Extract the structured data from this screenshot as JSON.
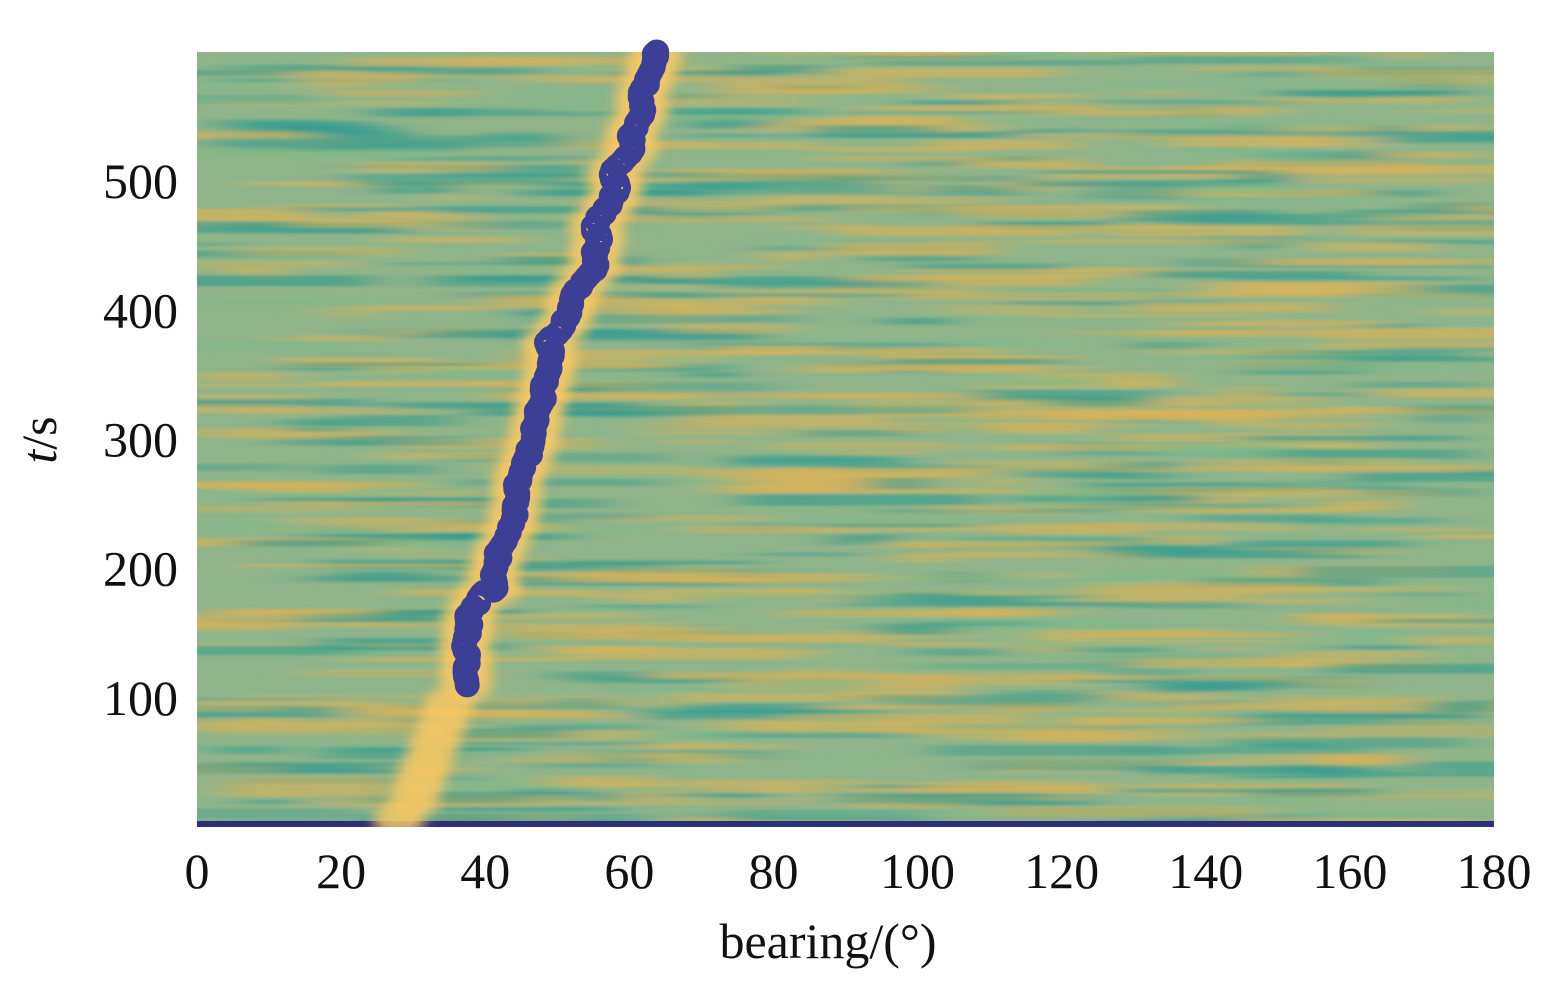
{
  "chart_data": {
    "type": "heatmap",
    "title": "",
    "xlabel": "bearing/(°)",
    "ylabel_italic": "t",
    "ylabel_rest": "/s",
    "xlim": [
      0,
      180
    ],
    "ylim": [
      0,
      600
    ],
    "x_ticks": [
      0,
      20,
      40,
      60,
      80,
      100,
      120,
      140,
      160,
      180
    ],
    "y_ticks": [
      100,
      200,
      300,
      400,
      500
    ],
    "grid": false,
    "legend": "none",
    "colormap": [
      "#2c2f7a",
      "#2f9a8f",
      "#7fb88a",
      "#d9b35a",
      "#f5d07a"
    ],
    "background_color": "#8fb48a",
    "track_color": "#3b3f96",
    "ridge_color": "#f7c864",
    "track": {
      "name": "",
      "points": [
        [
          37.5,
          110
        ],
        [
          37.2,
          120
        ],
        [
          37.6,
          130
        ],
        [
          37.0,
          140
        ],
        [
          37.8,
          150
        ],
        [
          37.5,
          160
        ],
        [
          38.3,
          170
        ],
        [
          39.5,
          180
        ],
        [
          41.5,
          185
        ],
        [
          41.0,
          195
        ],
        [
          41.5,
          205
        ],
        [
          42.0,
          215
        ],
        [
          43.0,
          225
        ],
        [
          43.8,
          235
        ],
        [
          44.0,
          245
        ],
        [
          44.5,
          255
        ],
        [
          44.2,
          265
        ],
        [
          45.0,
          275
        ],
        [
          45.6,
          285
        ],
        [
          46.5,
          295
        ],
        [
          46.8,
          305
        ],
        [
          47.2,
          315
        ],
        [
          47.5,
          325
        ],
        [
          48.0,
          335
        ],
        [
          48.5,
          345
        ],
        [
          49.0,
          355
        ],
        [
          49.3,
          365
        ],
        [
          48.5,
          375
        ],
        [
          50.5,
          385
        ],
        [
          51.5,
          395
        ],
        [
          52.0,
          405
        ],
        [
          52.5,
          415
        ],
        [
          54.0,
          425
        ],
        [
          55.5,
          435
        ],
        [
          55.0,
          445
        ],
        [
          56.0,
          455
        ],
        [
          55.0,
          465
        ],
        [
          56.5,
          475
        ],
        [
          57.5,
          485
        ],
        [
          58.5,
          495
        ],
        [
          57.5,
          505
        ],
        [
          59.0,
          515
        ],
        [
          60.5,
          525
        ],
        [
          60.0,
          535
        ],
        [
          61.0,
          545
        ],
        [
          62.0,
          555
        ],
        [
          61.5,
          565
        ],
        [
          62.5,
          575
        ],
        [
          63.0,
          585
        ],
        [
          63.5,
          595
        ],
        [
          63.8,
          600
        ]
      ]
    },
    "early_ridge": [
      [
        28,
        5
      ],
      [
        30,
        20
      ],
      [
        31,
        35
      ],
      [
        32,
        50
      ],
      [
        33,
        65
      ],
      [
        34,
        80
      ],
      [
        35,
        95
      ]
    ]
  }
}
